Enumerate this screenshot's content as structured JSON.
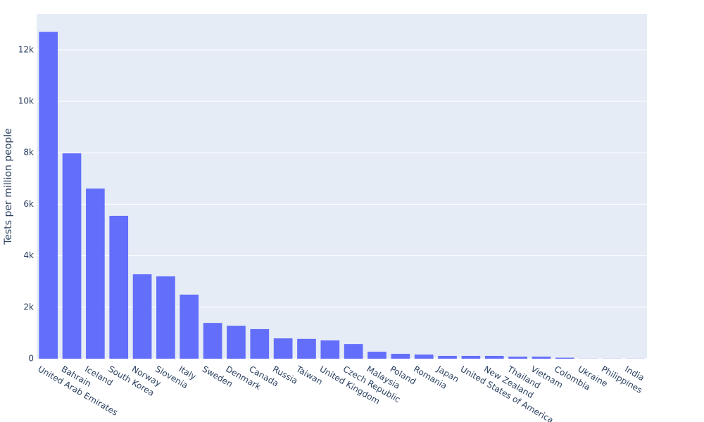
{
  "chart_data": {
    "type": "bar",
    "y_axis_label": "Tests per million people",
    "categories": [
      "United Arab Emirates",
      "Bahrain",
      "Iceland",
      "South Korea",
      "Norway",
      "Slovenia",
      "Italy",
      "Sweden",
      "Denmark",
      "Canada",
      "Russia",
      "Taiwan",
      "United Kingdom",
      "Czech Republic",
      "Malaysia",
      "Poland",
      "Romania",
      "Japan",
      "United States of America",
      "New Zealand",
      "Thailand",
      "Vietnam",
      "Colombia",
      "Ukraine",
      "Philippines",
      "India"
    ],
    "values": [
      12700,
      7980,
      6610,
      5550,
      3280,
      3200,
      2490,
      1390,
      1280,
      1150,
      790,
      770,
      710,
      570,
      270,
      190,
      160,
      110,
      110,
      110,
      80,
      80,
      40,
      5,
      5,
      5
    ],
    "color": "#636efa",
    "ylim": [
      0,
      13390
    ],
    "yticks": [
      0,
      {
        "value": 2000,
        "label": "2k"
      },
      {
        "value": 4000,
        "label": "4k"
      },
      {
        "value": 6000,
        "label": "6k"
      },
      {
        "value": 8000,
        "label": "8k"
      },
      {
        "value": 10000,
        "label": "10k"
      },
      {
        "value": 12000,
        "label": "12k"
      }
    ],
    "grid": true
  }
}
